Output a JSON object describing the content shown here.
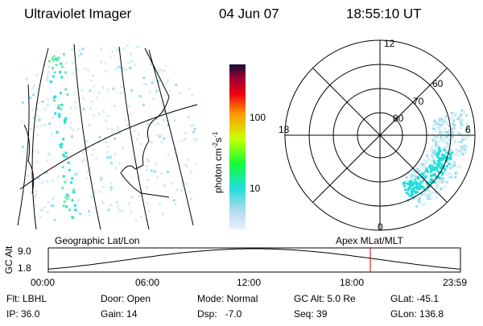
{
  "header": {
    "title": "Ultraviolet Imager",
    "date": "04 Jun 07",
    "time": "18:55:10 UT"
  },
  "colorbar": {
    "label": "photon cm",
    "exp1": "-2",
    "unit2": "s",
    "exp2": "-1",
    "ticks": [
      "100",
      "10"
    ]
  },
  "polar": {
    "labels": [
      "12",
      "18",
      "6",
      "0",
      "60",
      "70",
      "80"
    ]
  },
  "captions": {
    "left": "Geographic Lat/Lon",
    "right": "Apex MLat/MLT"
  },
  "altitude": {
    "ylabel": "GC Alt",
    "yticks": [
      "9.0",
      "1.8"
    ],
    "xticks": [
      "00:00",
      "06:00",
      "12:00",
      "18:00",
      "23:59"
    ]
  },
  "footer": {
    "rows": [
      [
        "Flt: LBHL",
        "Door: Open",
        "Mode: Normal",
        "GC Alt: 5.0 Re",
        "GLat: -45.1"
      ],
      [
        "IP: 36.0",
        "Gain: 14",
        "Dsp:   -7.0",
        "Seq: 39",
        "GLon: 136.8"
      ]
    ]
  }
}
